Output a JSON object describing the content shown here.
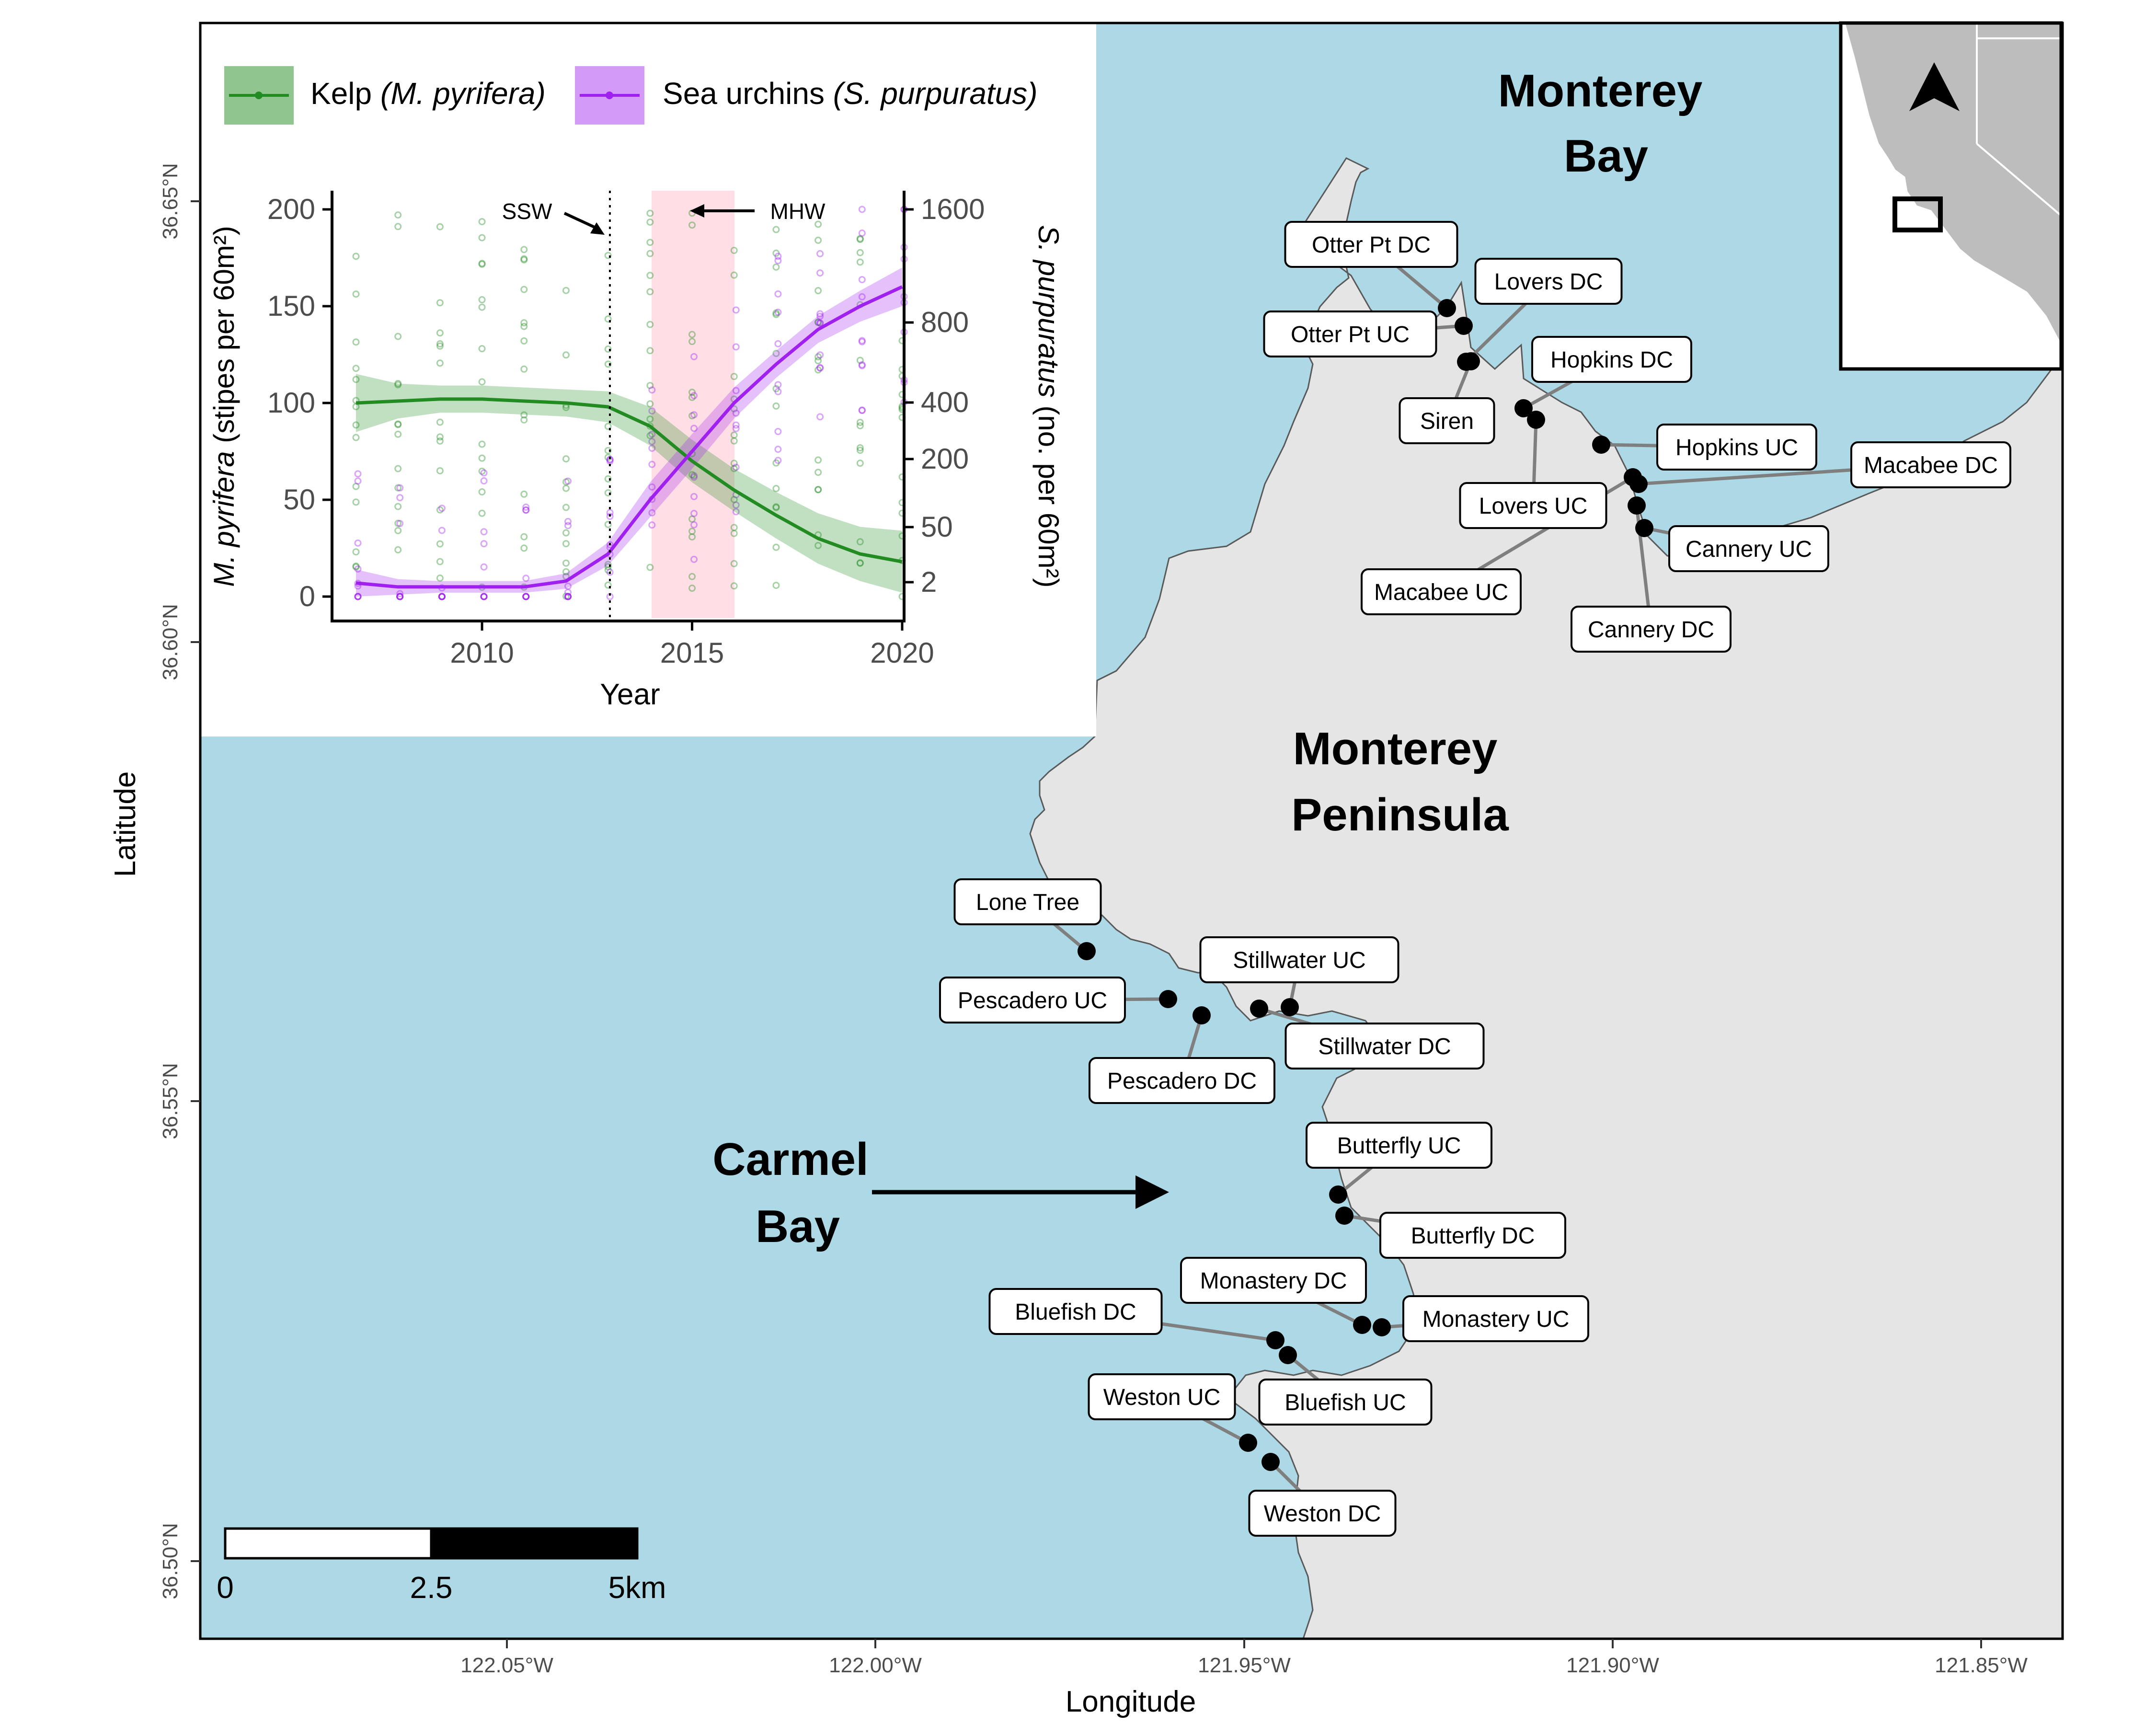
{
  "map": {
    "x_axis_title": "Longitude",
    "y_axis_title": "Latitude",
    "x_ticks": [
      "122.05°W",
      "122.00°W",
      "121.95°W",
      "121.90°W",
      "121.85°W"
    ],
    "y_ticks": [
      "36.65°N",
      "36.60°N",
      "36.55°N",
      "36.50°N"
    ],
    "colors": {
      "water": "#add8e6",
      "land": "#e5e5e5",
      "coast": "#595959",
      "site": "#000000"
    },
    "region_labels": {
      "monterey_bay": [
        "Monterey",
        "Bay"
      ],
      "monterey_peninsula": [
        "Monterey",
        "Peninsula"
      ],
      "carmel_bay": [
        "Carmel",
        "Bay"
      ]
    },
    "sites": [
      "Otter Pt DC",
      "Otter Pt UC",
      "Lovers DC",
      "Hopkins DC",
      "Siren",
      "Hopkins UC",
      "Macabee DC",
      "Lovers UC",
      "Cannery UC",
      "Macabee UC",
      "Cannery DC",
      "Lone Tree",
      "Stillwater UC",
      "Pescadero UC",
      "Stillwater DC",
      "Pescadero DC",
      "Butterfly UC",
      "Butterfly DC",
      "Monastery DC",
      "Monastery UC",
      "Bluefish DC",
      "Bluefish UC",
      "Weston UC",
      "Weston DC"
    ],
    "scale_bar": {
      "labels": [
        "0",
        "2.5",
        "5km"
      ]
    },
    "inset": {
      "description_icon": "north-arrow-icon"
    }
  },
  "chart_data": {
    "type": "line",
    "x": [
      2007,
      2008,
      2009,
      2010,
      2011,
      2012,
      2013,
      2014,
      2015,
      2016,
      2017,
      2018,
      2019,
      2020
    ],
    "xlabel": "Year",
    "x_ticks": [
      "2010",
      "2015",
      "2020"
    ],
    "ylabel_left_italic": "M. pyrifera",
    "ylabel_left_rest": " (stipes per 60m²)",
    "ylabel_right_italic": "S. purpuratus",
    "ylabel_right_rest": " (no. per 60m²)",
    "ylim_left": [
      0,
      200
    ],
    "y_ticks_left": [
      "0",
      "50",
      "100",
      "150",
      "200"
    ],
    "y_ticks_right": [
      "2",
      "50",
      "200",
      "400",
      "800",
      "1600"
    ],
    "right_axis_scale": "pseudo-log",
    "series": [
      {
        "name_plain": "Kelp ",
        "name_italic": "(M. pyrifera)",
        "color": "#228b22",
        "values": [
          100,
          101,
          102,
          102,
          101,
          100,
          98,
          88,
          70,
          55,
          42,
          30,
          22,
          18
        ]
      },
      {
        "name_plain": "Sea urchins ",
        "name_italic": "(S. purpuratus)",
        "color": "#a020f0",
        "values": [
          7,
          5,
          5,
          5,
          5,
          8,
          22,
          50,
          75,
          100,
          120,
          138,
          150,
          160
        ]
      }
    ],
    "annotations": [
      {
        "label": "SSW",
        "x": 2013
      },
      {
        "label": "MHW",
        "x_range": [
          2014,
          2016
        ]
      }
    ],
    "grid": false
  }
}
